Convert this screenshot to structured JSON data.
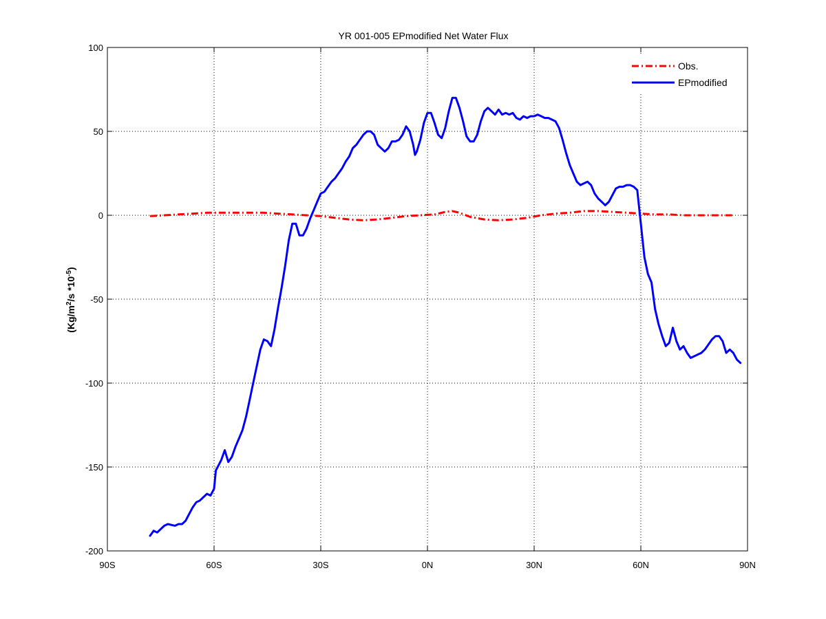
{
  "chart_data": {
    "type": "line",
    "title": "YR 001-005 EPmodified  Net Water Flux",
    "ylabel_parts": {
      "main": "(Kg/m",
      "sup1": "2",
      "mid": "/s *10",
      "sup2": "-5",
      "end": ")"
    },
    "xlabel": "",
    "xlim": [
      -90,
      90
    ],
    "ylim": [
      -200,
      100
    ],
    "grid": true,
    "legend_position": "top-right",
    "x_ticks": [
      {
        "value": -90,
        "label": "90S"
      },
      {
        "value": -60,
        "label": "60S"
      },
      {
        "value": -30,
        "label": "30S"
      },
      {
        "value": 0,
        "label": "0N"
      },
      {
        "value": 30,
        "label": "30N"
      },
      {
        "value": 60,
        "label": "60N"
      },
      {
        "value": 90,
        "label": "90N"
      }
    ],
    "y_ticks": [
      {
        "value": 100,
        "label": "100"
      },
      {
        "value": 50,
        "label": "50"
      },
      {
        "value": 0,
        "label": "0"
      },
      {
        "value": -50,
        "label": "-50"
      },
      {
        "value": -100,
        "label": "-100"
      },
      {
        "value": -150,
        "label": "-150"
      },
      {
        "value": -200,
        "label": "-200"
      }
    ],
    "series": [
      {
        "name": "Obs.",
        "color": "#ff0000",
        "style": "dash-dot",
        "points": [
          [
            -78,
            -0.5
          ],
          [
            -74,
            0
          ],
          [
            -70,
            0.5
          ],
          [
            -66,
            1
          ],
          [
            -62,
            1.5
          ],
          [
            -58,
            1.5
          ],
          [
            -54,
            1.5
          ],
          [
            -50,
            1.5
          ],
          [
            -46,
            1.5
          ],
          [
            -42,
            1
          ],
          [
            -38,
            0.5
          ],
          [
            -34,
            0
          ],
          [
            -30,
            -0.5
          ],
          [
            -26,
            -1.5
          ],
          [
            -22,
            -2.5
          ],
          [
            -18,
            -3
          ],
          [
            -14,
            -2.5
          ],
          [
            -10,
            -1.5
          ],
          [
            -6,
            -0.5
          ],
          [
            -2,
            0
          ],
          [
            2,
            0.5
          ],
          [
            5,
            2
          ],
          [
            7,
            2.5
          ],
          [
            9,
            1.5
          ],
          [
            12,
            -1
          ],
          [
            16,
            -2.5
          ],
          [
            20,
            -3
          ],
          [
            24,
            -2.5
          ],
          [
            28,
            -1.5
          ],
          [
            32,
            0
          ],
          [
            36,
            1
          ],
          [
            40,
            1.5
          ],
          [
            44,
            2.5
          ],
          [
            48,
            2.5
          ],
          [
            52,
            2
          ],
          [
            56,
            1.5
          ],
          [
            60,
            1
          ],
          [
            64,
            0.5
          ],
          [
            68,
            0.5
          ],
          [
            72,
            0
          ],
          [
            76,
            0
          ],
          [
            80,
            0
          ],
          [
            84,
            0
          ],
          [
            86,
            0
          ]
        ]
      },
      {
        "name": "EPmodified",
        "color": "#0000ff",
        "style": "solid",
        "points": [
          [
            -78,
            -191
          ],
          [
            -77,
            -188
          ],
          [
            -76,
            -189
          ],
          [
            -74,
            -185
          ],
          [
            -73,
            -184
          ],
          [
            -71,
            -185
          ],
          [
            -70,
            -184
          ],
          [
            -69,
            -184
          ],
          [
            -68,
            -182
          ],
          [
            -67,
            -178
          ],
          [
            -66,
            -174
          ],
          [
            -65,
            -171
          ],
          [
            -64,
            -170
          ],
          [
            -63,
            -168
          ],
          [
            -62,
            -166
          ],
          [
            -61,
            -167
          ],
          [
            -60,
            -163
          ],
          [
            -59.5,
            -152
          ],
          [
            -59,
            -150
          ],
          [
            -58,
            -146
          ],
          [
            -57,
            -140
          ],
          [
            -56,
            -147
          ],
          [
            -55,
            -144
          ],
          [
            -54,
            -138
          ],
          [
            -53,
            -133
          ],
          [
            -52,
            -128
          ],
          [
            -51,
            -120
          ],
          [
            -50,
            -110
          ],
          [
            -49,
            -100
          ],
          [
            -48,
            -90
          ],
          [
            -47,
            -80
          ],
          [
            -46,
            -74
          ],
          [
            -45,
            -75
          ],
          [
            -44,
            -78
          ],
          [
            -43,
            -68
          ],
          [
            -42,
            -55
          ],
          [
            -41,
            -43
          ],
          [
            -40,
            -30
          ],
          [
            -39,
            -15
          ],
          [
            -38,
            -5
          ],
          [
            -37,
            -5
          ],
          [
            -36,
            -12
          ],
          [
            -35,
            -12
          ],
          [
            -34,
            -8
          ],
          [
            -33,
            -2
          ],
          [
            -32,
            3
          ],
          [
            -31,
            8
          ],
          [
            -30,
            13
          ],
          [
            -29,
            14
          ],
          [
            -28,
            17
          ],
          [
            -27,
            20
          ],
          [
            -26,
            22
          ],
          [
            -25,
            25
          ],
          [
            -24,
            28
          ],
          [
            -23,
            32
          ],
          [
            -22,
            35
          ],
          [
            -21,
            40
          ],
          [
            -20,
            42
          ],
          [
            -19,
            45
          ],
          [
            -18,
            48
          ],
          [
            -17,
            50
          ],
          [
            -16,
            50
          ],
          [
            -15,
            48
          ],
          [
            -14,
            42
          ],
          [
            -13,
            40
          ],
          [
            -12,
            38
          ],
          [
            -11,
            40
          ],
          [
            -10,
            44
          ],
          [
            -9,
            44
          ],
          [
            -8,
            45
          ],
          [
            -7,
            48
          ],
          [
            -6,
            53
          ],
          [
            -5,
            50
          ],
          [
            -4,
            42
          ],
          [
            -3.5,
            36
          ],
          [
            -3,
            38
          ],
          [
            -2,
            45
          ],
          [
            -1,
            55
          ],
          [
            0,
            61
          ],
          [
            1,
            61
          ],
          [
            2,
            55
          ],
          [
            3,
            48
          ],
          [
            4,
            46
          ],
          [
            5,
            52
          ],
          [
            6,
            62
          ],
          [
            7,
            70
          ],
          [
            8,
            70
          ],
          [
            9,
            64
          ],
          [
            10,
            56
          ],
          [
            11,
            47
          ],
          [
            12,
            44
          ],
          [
            13,
            44
          ],
          [
            14,
            48
          ],
          [
            15,
            56
          ],
          [
            16,
            62
          ],
          [
            17,
            64
          ],
          [
            18,
            62
          ],
          [
            19,
            60
          ],
          [
            20,
            63
          ],
          [
            21,
            60
          ],
          [
            22,
            61
          ],
          [
            23,
            60
          ],
          [
            24,
            61
          ],
          [
            25,
            58
          ],
          [
            26,
            57
          ],
          [
            27,
            59
          ],
          [
            28,
            58
          ],
          [
            29,
            59
          ],
          [
            30,
            59
          ],
          [
            31,
            60
          ],
          [
            32,
            59
          ],
          [
            33,
            58
          ],
          [
            34,
            58
          ],
          [
            35,
            57
          ],
          [
            36,
            56
          ],
          [
            37,
            52
          ],
          [
            38,
            45
          ],
          [
            39,
            37
          ],
          [
            40,
            30
          ],
          [
            41,
            25
          ],
          [
            42,
            20
          ],
          [
            43,
            18
          ],
          [
            44,
            19
          ],
          [
            45,
            20
          ],
          [
            46,
            18
          ],
          [
            47,
            13
          ],
          [
            48,
            10
          ],
          [
            49,
            8
          ],
          [
            50,
            6
          ],
          [
            51,
            8
          ],
          [
            52,
            12
          ],
          [
            53,
            16
          ],
          [
            54,
            17
          ],
          [
            55,
            17
          ],
          [
            56,
            18
          ],
          [
            57,
            18
          ],
          [
            58,
            17
          ],
          [
            59,
            15
          ],
          [
            60,
            -5
          ],
          [
            61,
            -25
          ],
          [
            62,
            -35
          ],
          [
            63,
            -40
          ],
          [
            64,
            -56
          ],
          [
            65,
            -65
          ],
          [
            66,
            -72
          ],
          [
            67,
            -78
          ],
          [
            68,
            -76
          ],
          [
            69,
            -67
          ],
          [
            70,
            -75
          ],
          [
            71,
            -80
          ],
          [
            72,
            -78
          ],
          [
            73,
            -82
          ],
          [
            74,
            -85
          ],
          [
            75,
            -84
          ],
          [
            76,
            -83
          ],
          [
            77,
            -82
          ],
          [
            78,
            -80
          ],
          [
            79,
            -77
          ],
          [
            80,
            -74
          ],
          [
            81,
            -72
          ],
          [
            82,
            -72
          ],
          [
            83,
            -75
          ],
          [
            84,
            -82
          ],
          [
            85,
            -80
          ],
          [
            86,
            -82
          ],
          [
            87,
            -86
          ],
          [
            88,
            -88
          ]
        ]
      }
    ]
  }
}
